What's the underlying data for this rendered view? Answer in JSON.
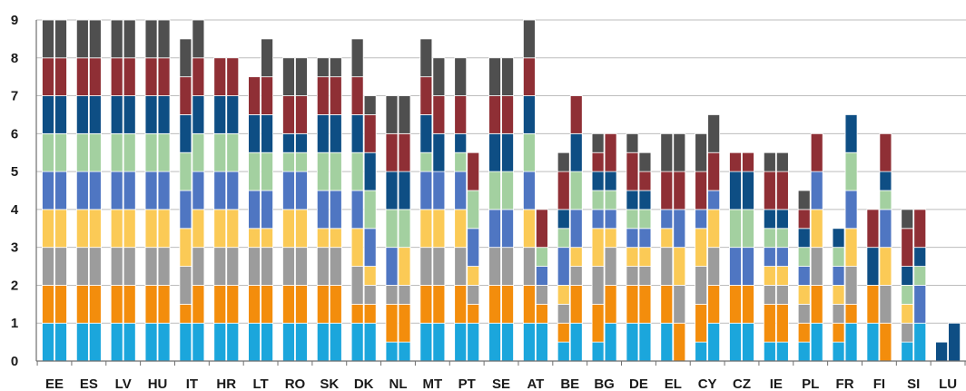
{
  "chart_data": {
    "type": "bar",
    "stacked": true,
    "grouped_pairs": true,
    "title": "",
    "xlabel": "",
    "ylabel": "",
    "ylim": [
      0,
      9
    ],
    "yticks": [
      0,
      1,
      2,
      3,
      4,
      5,
      6,
      7,
      8,
      9
    ],
    "grid": true,
    "legend": "none",
    "segment_colors": [
      "#1ba6dc",
      "#f38d0c",
      "#9c9c9c",
      "#fbca56",
      "#4f76c2",
      "#a3d0a0",
      "#0e4e84",
      "#8f2f35",
      "#4f4f4f"
    ],
    "categories": [
      "EE",
      "ES",
      "LV",
      "HU",
      "IT",
      "HR",
      "LT",
      "RO",
      "SK",
      "DK",
      "NL",
      "MT",
      "PT",
      "SE",
      "AT",
      "BE",
      "BG",
      "DE",
      "EL",
      "CY",
      "CZ",
      "IE",
      "PL",
      "FR",
      "FI",
      "SI",
      "LU"
    ],
    "bars": [
      {
        "category": "EE",
        "left": [
          1,
          1,
          1,
          1,
          1,
          1,
          1,
          1,
          1
        ],
        "right": [
          1,
          1,
          1,
          1,
          1,
          1,
          1,
          1,
          1
        ]
      },
      {
        "category": "ES",
        "left": [
          1,
          1,
          1,
          1,
          1,
          1,
          1,
          1,
          1
        ],
        "right": [
          1,
          1,
          1,
          1,
          1,
          1,
          1,
          1,
          1
        ]
      },
      {
        "category": "LV",
        "left": [
          1,
          1,
          1,
          1,
          1,
          1,
          1,
          1,
          1
        ],
        "right": [
          1,
          1,
          1,
          1,
          1,
          1,
          1,
          1,
          1
        ]
      },
      {
        "category": "HU",
        "left": [
          1,
          1,
          1,
          1,
          1,
          1,
          1,
          1,
          1
        ],
        "right": [
          1,
          1,
          1,
          1,
          1,
          1,
          1,
          1,
          1
        ]
      },
      {
        "category": "IT",
        "left": [
          1,
          0.5,
          1,
          1,
          1,
          1,
          1,
          1,
          1
        ],
        "right": [
          1,
          1,
          1,
          1,
          1,
          1,
          1,
          1,
          1
        ]
      },
      {
        "category": "HR",
        "left": [
          1,
          1,
          1,
          1,
          1,
          1,
          1,
          1,
          0
        ],
        "right": [
          1,
          1,
          1,
          1,
          1,
          1,
          1,
          1,
          0
        ]
      },
      {
        "category": "LT",
        "left": [
          1,
          1,
          1,
          0.5,
          1,
          1,
          1,
          1,
          0
        ],
        "right": [
          1,
          1,
          1,
          0.5,
          1,
          1,
          1,
          1,
          1
        ]
      },
      {
        "category": "RO",
        "left": [
          1,
          1,
          1,
          1,
          1,
          0.5,
          0.5,
          1,
          1
        ],
        "right": [
          1,
          1,
          1,
          1,
          1,
          0.5,
          0.5,
          1,
          1
        ]
      },
      {
        "category": "SK",
        "left": [
          1,
          1,
          1,
          0.5,
          1,
          1,
          1,
          1,
          0.5
        ],
        "right": [
          1,
          1,
          1,
          0.5,
          1,
          1,
          1,
          1,
          0.5
        ]
      },
      {
        "category": "DK",
        "left": [
          1,
          0.5,
          1,
          1,
          1,
          1,
          1,
          1,
          1
        ],
        "right": [
          1,
          0.5,
          0.5,
          0.5,
          1,
          1,
          1,
          1,
          0.5
        ]
      },
      {
        "category": "NL",
        "left": [
          0.5,
          1,
          0.5,
          0,
          1,
          1,
          1,
          1,
          1
        ],
        "right": [
          0.5,
          1,
          0.5,
          1,
          0,
          1,
          1,
          1,
          1
        ]
      },
      {
        "category": "MT",
        "left": [
          1,
          1,
          1,
          1,
          1,
          0.5,
          1,
          1,
          1
        ],
        "right": [
          1,
          1,
          1,
          1,
          1,
          0,
          1,
          1,
          1
        ]
      },
      {
        "category": "PT",
        "left": [
          1,
          1,
          1,
          1,
          1,
          0.5,
          0.5,
          1,
          1
        ],
        "right": [
          1,
          0.5,
          0.5,
          0.5,
          1,
          1,
          0,
          1,
          0
        ]
      },
      {
        "category": "SE",
        "left": [
          1,
          1,
          1,
          0,
          1,
          1,
          1,
          1,
          1
        ],
        "right": [
          1,
          1,
          1,
          0,
          1,
          1,
          1,
          1,
          1
        ]
      },
      {
        "category": "AT",
        "left": [
          1,
          1,
          1,
          1,
          1,
          1,
          1,
          1,
          1
        ],
        "right": [
          1,
          0.5,
          0.5,
          0,
          0.5,
          0.5,
          0,
          1,
          0
        ]
      },
      {
        "category": "BE",
        "left": [
          0.5,
          0.5,
          0.5,
          0.5,
          1,
          0.5,
          0.5,
          1,
          0.5
        ],
        "right": [
          1,
          1,
          0.5,
          0.5,
          1,
          1,
          1,
          1,
          0
        ]
      },
      {
        "category": "BG",
        "left": [
          0.5,
          1,
          1,
          1,
          0.5,
          0.5,
          0.5,
          0.5,
          0.5
        ],
        "right": [
          1,
          1,
          1,
          0.5,
          0.5,
          0.5,
          0.5,
          1,
          0
        ]
      },
      {
        "category": "DE",
        "left": [
          1,
          1,
          0.5,
          0.5,
          0.5,
          0.5,
          0.5,
          1,
          0.5
        ],
        "right": [
          1,
          1,
          0.5,
          0.5,
          0.5,
          0.5,
          0.5,
          0.5,
          0.5
        ]
      },
      {
        "category": "EL",
        "left": [
          1,
          1,
          1,
          0.5,
          0.5,
          0,
          0,
          1,
          1
        ],
        "right": [
          0,
          1,
          1,
          1,
          1,
          0,
          0,
          1,
          1
        ]
      },
      {
        "category": "CY",
        "left": [
          0.5,
          1,
          1,
          1,
          0.5,
          0,
          0,
          1,
          1
        ],
        "right": [
          1,
          1,
          1,
          1,
          0.5,
          0,
          0,
          1,
          1
        ]
      },
      {
        "category": "CZ",
        "left": [
          1,
          1,
          0,
          0,
          1,
          1,
          1,
          0.5,
          0
        ],
        "right": [
          1,
          1,
          0,
          0,
          1,
          1,
          1,
          0.5,
          0
        ]
      },
      {
        "category": "IE",
        "left": [
          0.5,
          1,
          0.5,
          0.5,
          0.5,
          0.5,
          0.5,
          1,
          0.5
        ],
        "right": [
          0.5,
          1,
          0.5,
          0.5,
          0.5,
          0.5,
          0.5,
          1,
          0.5
        ]
      },
      {
        "category": "PL",
        "left": [
          0.5,
          0.5,
          0.5,
          0.5,
          0.5,
          0.5,
          0.5,
          0.5,
          0.5
        ],
        "right": [
          1,
          1,
          1,
          1,
          1,
          0,
          0,
          1,
          0
        ]
      },
      {
        "category": "FR",
        "left": [
          0.5,
          0.5,
          0.5,
          0.5,
          0.5,
          0.5,
          0.5,
          0,
          0
        ],
        "right": [
          1,
          0.5,
          1,
          1,
          1,
          1,
          1,
          0,
          0
        ]
      },
      {
        "category": "FI",
        "left": [
          1,
          1,
          0,
          0,
          0,
          0,
          1,
          1,
          0
        ],
        "right": [
          0,
          1,
          1,
          1,
          1,
          0.5,
          0.5,
          1,
          0
        ]
      },
      {
        "category": "SI",
        "left": [
          0.5,
          0,
          0.5,
          0.5,
          0,
          0.5,
          0.5,
          1,
          0.5
        ],
        "right": [
          1,
          0,
          0,
          0,
          1,
          0.5,
          0.5,
          1,
          0
        ]
      },
      {
        "category": "LU",
        "left": [
          0,
          0,
          0,
          0,
          0,
          0,
          0.5,
          0,
          0
        ],
        "right": [
          0,
          0,
          0,
          0,
          0,
          0,
          1,
          0,
          0
        ]
      }
    ]
  }
}
